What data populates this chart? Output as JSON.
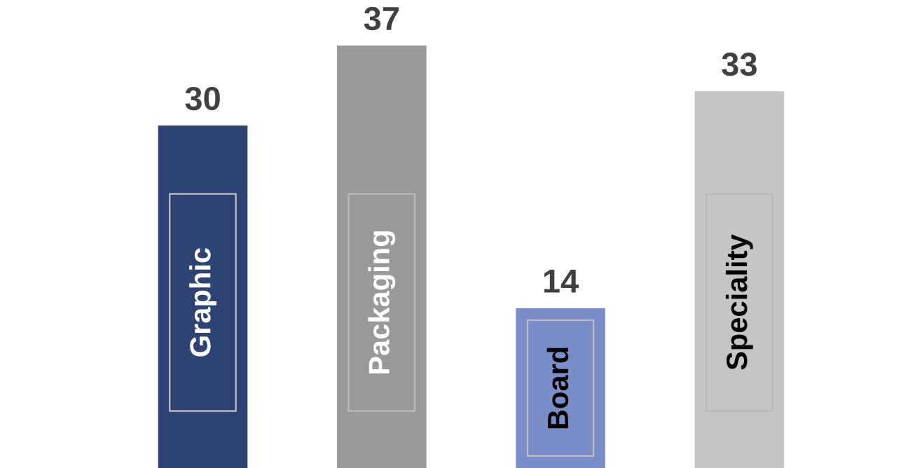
{
  "chart_data": {
    "type": "bar",
    "categories": [
      "Graphic",
      "Packaging",
      "Board",
      "Speciality"
    ],
    "values": [
      30,
      37,
      14,
      33
    ],
    "colors": [
      "#2e4374",
      "#999999",
      "#7a8dc8",
      "#c5c5c5"
    ],
    "data_labels": true
  }
}
